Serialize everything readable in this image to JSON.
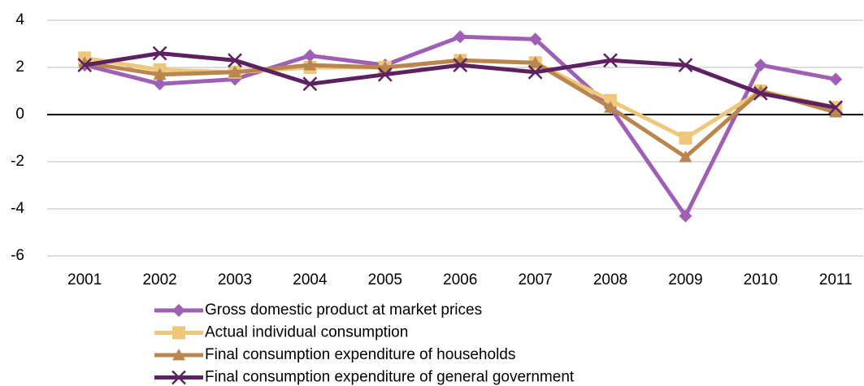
{
  "chart_data": {
    "type": "line",
    "categories": [
      "2001",
      "2002",
      "2003",
      "2004",
      "2005",
      "2006",
      "2007",
      "2008",
      "2009",
      "2010",
      "2011"
    ],
    "series": [
      {
        "name": "Gross domestic product at market prices",
        "color": "#9e5fb5",
        "marker": "diamond",
        "values": [
          2.1,
          1.3,
          1.5,
          2.5,
          2.1,
          3.3,
          3.2,
          0.3,
          -4.3,
          2.1,
          1.5
        ]
      },
      {
        "name": "Actual individual consumption",
        "color": "#eec77a",
        "marker": "square",
        "values": [
          2.4,
          1.9,
          1.8,
          2.0,
          2.0,
          2.3,
          2.2,
          0.6,
          -1.0,
          1.0,
          0.3
        ]
      },
      {
        "name": "Final consumption expenditure of households",
        "color": "#b8864e",
        "marker": "triangle",
        "values": [
          2.2,
          1.7,
          1.8,
          2.1,
          2.0,
          2.3,
          2.2,
          0.3,
          -1.8,
          1.0,
          0.1
        ]
      },
      {
        "name": "Final consumption expenditure of general government",
        "color": "#5c2160",
        "marker": "x",
        "values": [
          2.1,
          2.6,
          2.3,
          1.3,
          1.7,
          2.1,
          1.8,
          2.3,
          2.1,
          0.9,
          0.3
        ]
      }
    ],
    "ylim": [
      -6,
      4
    ],
    "yticks": [
      -6,
      -4,
      -2,
      0,
      2,
      4
    ],
    "grid": true,
    "legend": "bottom"
  }
}
